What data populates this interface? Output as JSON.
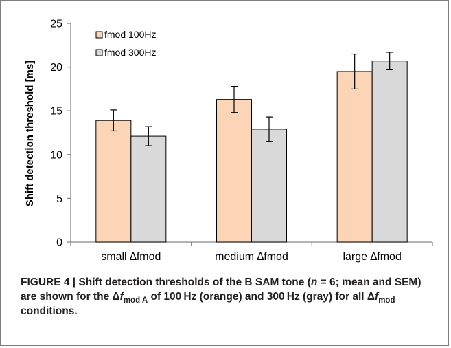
{
  "chart_data": {
    "type": "bar",
    "categories": [
      "small ∆fmod",
      "medium ∆fmod",
      "large ∆fmod"
    ],
    "series": [
      {
        "name": "fmod 100Hz",
        "values": [
          13.9,
          16.3,
          19.5
        ],
        "errors": [
          1.2,
          1.5,
          2.0
        ],
        "color": "#fbd5b5"
      },
      {
        "name": "fmod 300Hz",
        "values": [
          12.1,
          12.9,
          20.7
        ],
        "errors": [
          1.1,
          1.4,
          1.0
        ],
        "color": "#d9d9d9"
      }
    ],
    "xlabel": "",
    "ylabel": "Shift detection threshold [ms]",
    "ylim": [
      0,
      25
    ],
    "yticks": [
      "0",
      "5",
      "10",
      "15",
      "20",
      "25"
    ],
    "grid": false,
    "legend_position": "top-left"
  },
  "caption": {
    "figure_label": "FIGURE 4 | ",
    "text_1": "Shift detection thresholds of the B SAM tone (",
    "n_symbol": "n",
    "text_2": " = 6; mean and SEM) are shown for the ",
    "delta_1": "Δ",
    "f_1": "f",
    "sub_1": "mod A",
    "text_3": " of 100 Hz (orange) and 300 Hz (gray) for all ",
    "delta_2": "Δ",
    "f_2": "f",
    "sub_2": "mod",
    "text_4": " conditions."
  },
  "colors": {
    "bar_100hz": "#fbd5b5",
    "bar_300hz": "#d9d9d9",
    "bar_outline": "#000000",
    "axis": "#868686",
    "frame": "#7d7d7d"
  }
}
